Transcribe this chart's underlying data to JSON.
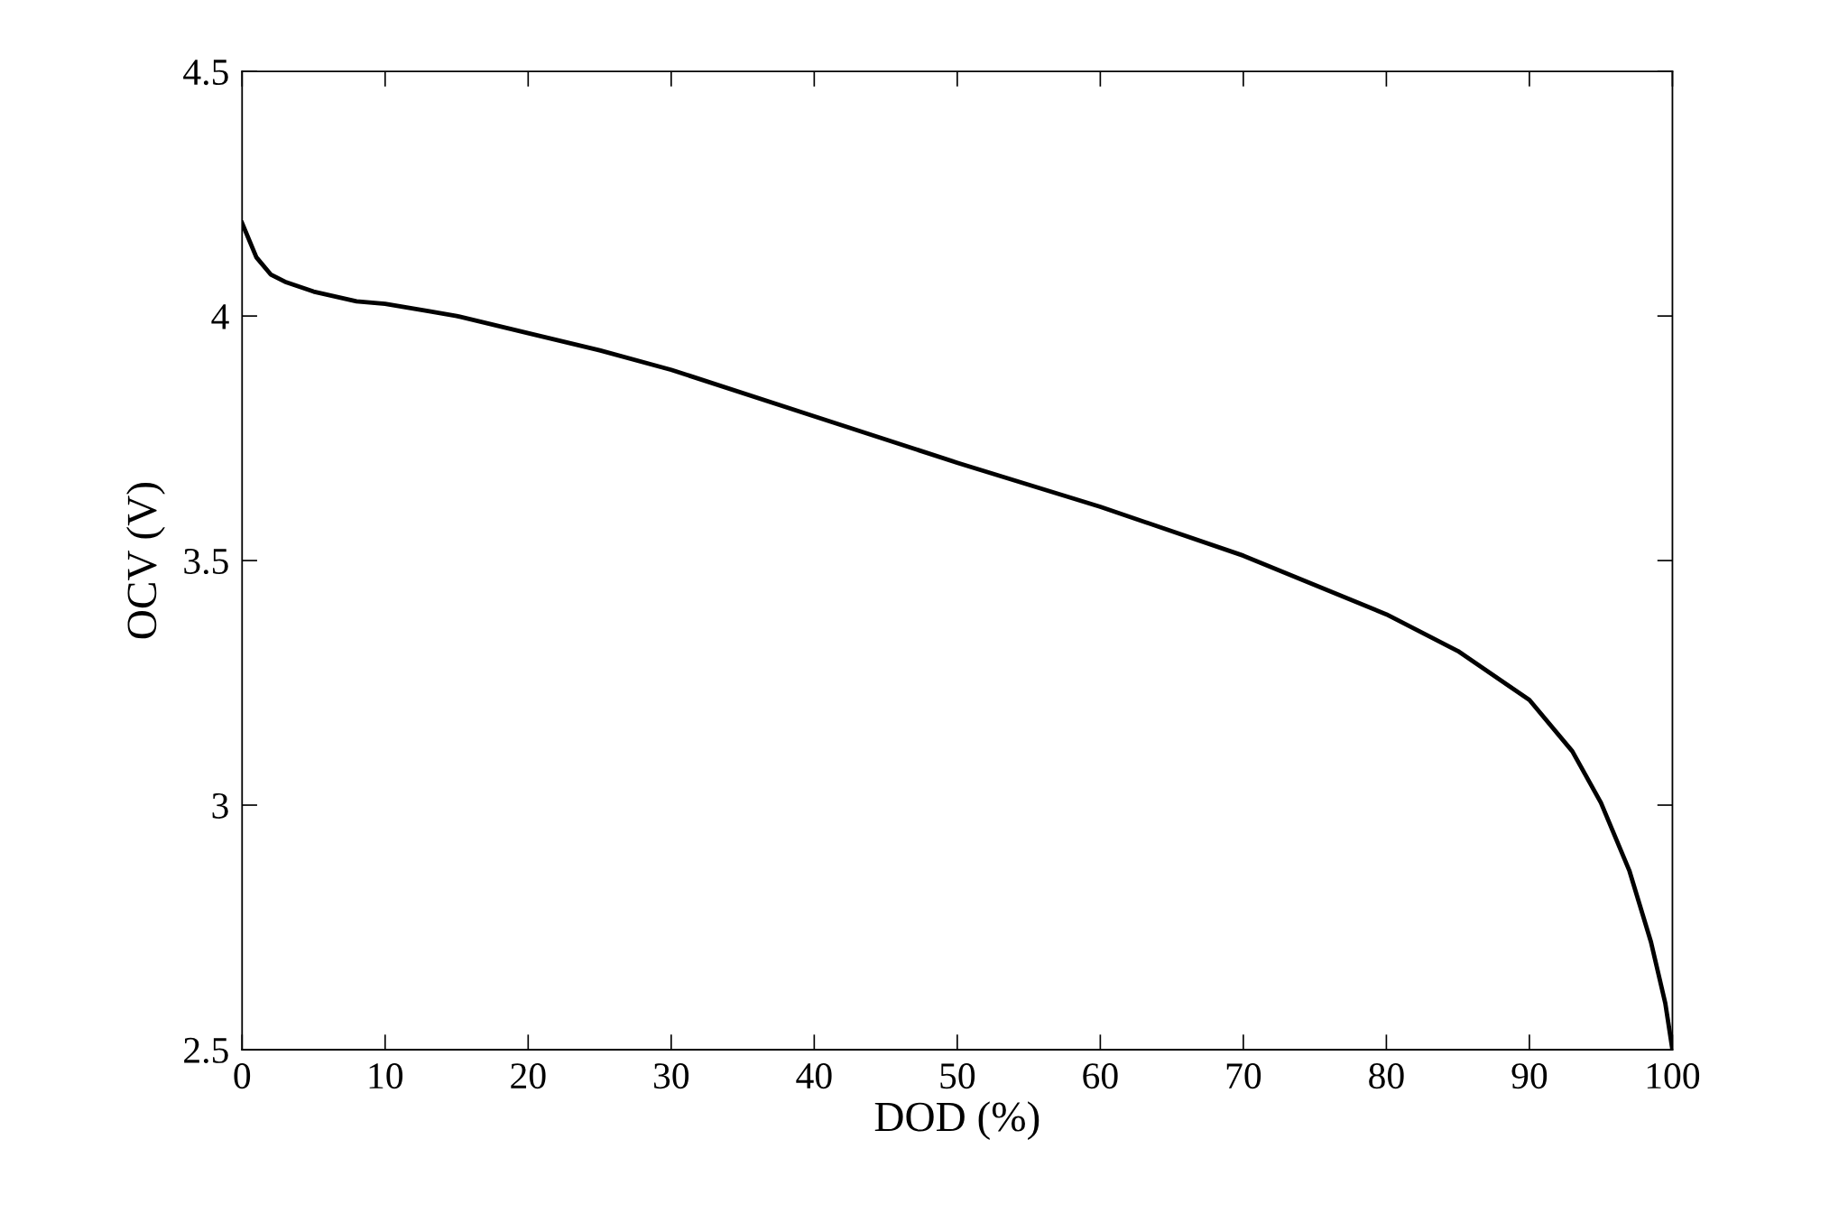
{
  "chart_data": {
    "type": "line",
    "xlabel": "DOD (%)",
    "ylabel": "OCV (V)",
    "xlim": [
      0,
      100
    ],
    "xticks": [
      0,
      10,
      20,
      30,
      40,
      50,
      60,
      70,
      80,
      90,
      100
    ],
    "ylim": [
      2.5,
      4.5
    ],
    "yticks": [
      2.5,
      3,
      3.5,
      4,
      4.5
    ],
    "grid": false,
    "legend": false,
    "marker": "none",
    "line_style": "solid",
    "series": [
      {
        "color": "#000000",
        "x": [
          0,
          1,
          2,
          3,
          5,
          8,
          10,
          13,
          15,
          20,
          25,
          30,
          40,
          50,
          60,
          70,
          80,
          85,
          90,
          93,
          95,
          97,
          98.5,
          99.5,
          100
        ],
        "values": [
          4.19,
          4.12,
          4.085,
          4.07,
          4.05,
          4.03,
          4.025,
          4.01,
          4.0,
          3.965,
          3.93,
          3.89,
          3.795,
          3.7,
          3.61,
          3.51,
          3.39,
          3.315,
          3.215,
          3.11,
          3.005,
          2.865,
          2.72,
          2.595,
          2.5
        ]
      }
    ]
  }
}
